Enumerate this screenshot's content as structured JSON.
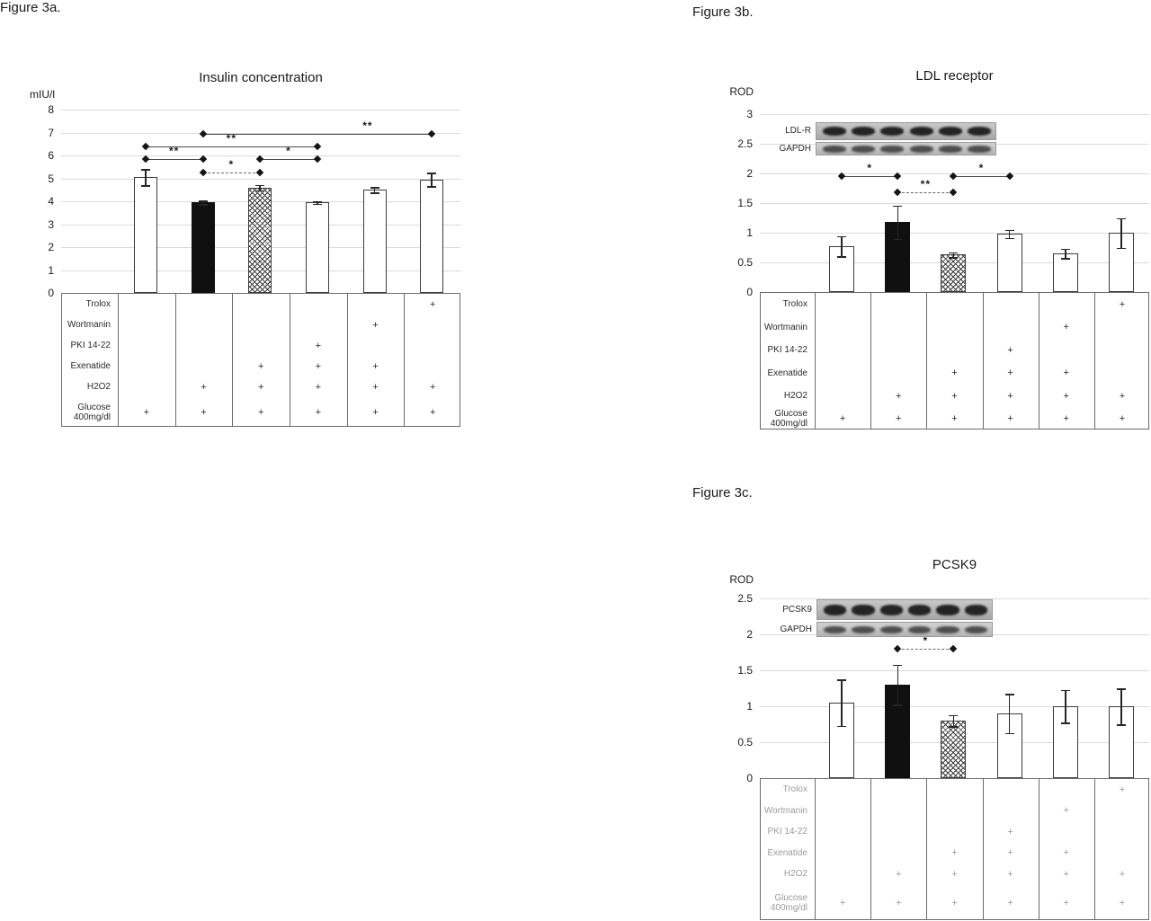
{
  "page": {
    "background": "#ffffff"
  },
  "colors": {
    "bar_black": "#101010",
    "grid": "#dadada",
    "table_border": "#6b6b6b"
  },
  "chart_data": [
    {
      "id": "3a",
      "figure_label": "Figure 3a.",
      "type": "bar",
      "title": "Insulin concentration",
      "ylabel": "mIU/l",
      "xlabel": "",
      "ylim": [
        0,
        8
      ],
      "grid": true,
      "yticks": [
        "8",
        "7",
        "6",
        "5",
        "4",
        "3",
        "2",
        "1",
        "0"
      ],
      "categories": [
        "lane1",
        "lane2",
        "lane3",
        "lane4",
        "lane5",
        "lane6"
      ],
      "values": [
        5.05,
        3.95,
        4.6,
        3.95,
        4.5,
        4.95
      ],
      "errors": [
        0.35,
        0.08,
        0.12,
        0.05,
        0.12,
        0.3
      ],
      "bar_styles": [
        "white",
        "black",
        "hatch",
        "white",
        "white",
        "white"
      ],
      "significance": [
        {
          "from": 1,
          "to": 5,
          "v": 6.95,
          "label": "**",
          "lf": 0.72
        },
        {
          "from": 0,
          "to": 3,
          "v": 6.4,
          "label": "**"
        },
        {
          "from": 0,
          "to": 1,
          "v": 5.85,
          "label": "**"
        },
        {
          "from": 2,
          "to": 3,
          "v": 5.85,
          "label": "*"
        },
        {
          "from": 1,
          "to": 2,
          "v": 5.25,
          "label": "*",
          "dashed": true
        }
      ],
      "blot": null,
      "treatment_table": {
        "plus": "+",
        "rows": [
          "Trolox",
          "Wortmanin",
          "PKI 14-22",
          "Exenatide",
          "H2O2",
          "Glucose 400mg/dl"
        ],
        "marks": [
          [
            0,
            0,
            0,
            0,
            0,
            1
          ],
          [
            0,
            0,
            0,
            0,
            1,
            0
          ],
          [
            0,
            0,
            0,
            1,
            0,
            0
          ],
          [
            0,
            0,
            1,
            1,
            1,
            0
          ],
          [
            0,
            1,
            1,
            1,
            1,
            1
          ],
          [
            1,
            1,
            1,
            1,
            1,
            1
          ]
        ]
      }
    },
    {
      "id": "3b",
      "figure_label": "Figure 3b.",
      "type": "bar",
      "title": "LDL receptor",
      "ylabel": "ROD",
      "xlabel": "",
      "ylim": [
        0,
        3
      ],
      "grid": true,
      "yticks": [
        "3",
        "2.5",
        "2",
        "1.5",
        "1",
        "0.5",
        "0"
      ],
      "categories": [
        "lane1",
        "lane2",
        "lane3",
        "lane4",
        "lane5",
        "lane6"
      ],
      "values": [
        0.77,
        1.18,
        0.63,
        0.98,
        0.65,
        1.0
      ],
      "errors": [
        0.17,
        0.28,
        0.04,
        0.07,
        0.08,
        0.25
      ],
      "bar_styles": [
        "white",
        "black",
        "hatch",
        "white",
        "white",
        "white"
      ],
      "significance": [
        {
          "from": 0,
          "to": 1,
          "v": 1.95,
          "label": "*"
        },
        {
          "from": 2,
          "to": 3,
          "v": 1.95,
          "label": "*"
        },
        {
          "from": 1,
          "to": 2,
          "v": 1.68,
          "label": "**",
          "dashed": true
        }
      ],
      "blot": {
        "rows": [
          {
            "label": "LDL-R"
          },
          {
            "label": "GAPDH"
          }
        ]
      },
      "treatment_table": {
        "plus": "+",
        "rows": [
          "Trolox",
          "Wortmanin",
          "PKI 14-22",
          "Exenatide",
          "H2O2",
          "Glucose 400mg/dl"
        ],
        "marks": [
          [
            0,
            0,
            0,
            0,
            0,
            1
          ],
          [
            0,
            0,
            0,
            0,
            1,
            0
          ],
          [
            0,
            0,
            0,
            1,
            0,
            0
          ],
          [
            0,
            0,
            1,
            1,
            1,
            0
          ],
          [
            0,
            1,
            1,
            1,
            1,
            1
          ],
          [
            1,
            1,
            1,
            1,
            1,
            1
          ]
        ]
      }
    },
    {
      "id": "3c",
      "figure_label": "Figure 3c.",
      "type": "bar",
      "title": "PCSK9",
      "ylabel": "ROD",
      "xlabel": "",
      "ylim": [
        0,
        2.5
      ],
      "grid": true,
      "yticks": [
        "2.5",
        "2",
        "1.5",
        "1",
        "0.5",
        "0"
      ],
      "categories": [
        "lane1",
        "lane2",
        "lane3",
        "lane4",
        "lane5",
        "lane6"
      ],
      "values": [
        1.05,
        1.3,
        0.8,
        0.9,
        1.0,
        1.0
      ],
      "errors": [
        0.32,
        0.28,
        0.08,
        0.27,
        0.23,
        0.25
      ],
      "bar_styles": [
        "white",
        "black",
        "hatch",
        "white",
        "white",
        "white"
      ],
      "significance": [
        {
          "from": 1,
          "to": 2,
          "v": 1.8,
          "label": "*",
          "dashed": true
        }
      ],
      "blot": {
        "rows": [
          {
            "label": "PCSK9"
          },
          {
            "label": "GAPDH"
          }
        ]
      },
      "treatment_table": {
        "plus": "+",
        "rows": [
          "Trolox",
          "Wortmanin",
          "PKI 14-22",
          "Exenatide",
          "H2O2",
          "Glucose 400mg/dl"
        ],
        "marks": [
          [
            0,
            0,
            0,
            0,
            0,
            1
          ],
          [
            0,
            0,
            0,
            0,
            1,
            0
          ],
          [
            0,
            0,
            0,
            1,
            0,
            0
          ],
          [
            0,
            0,
            1,
            1,
            1,
            0
          ],
          [
            0,
            1,
            1,
            1,
            1,
            1
          ],
          [
            1,
            1,
            1,
            1,
            1,
            1
          ]
        ]
      }
    }
  ]
}
